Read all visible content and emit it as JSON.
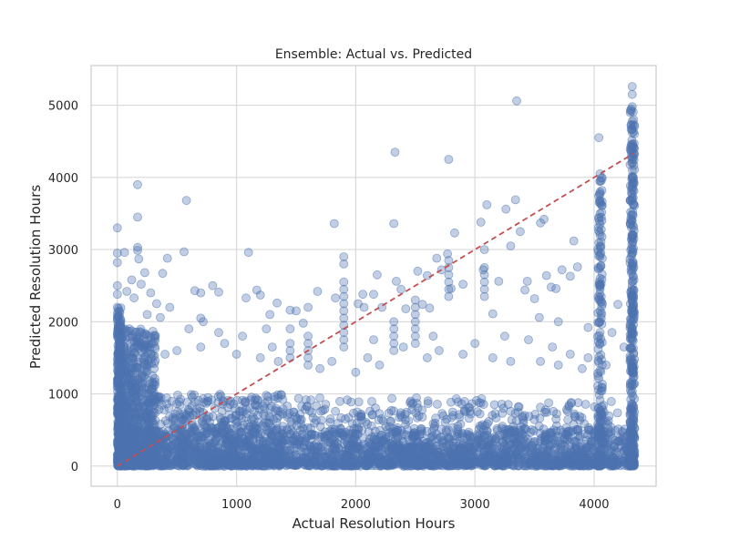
{
  "chart_data": {
    "type": "scatter",
    "title": "Ensemble: Actual vs. Predicted",
    "xlabel": "Actual Resolution Hours",
    "ylabel": "Predicted Resolution Hours",
    "xlim": [
      -220,
      4520
    ],
    "ylim": [
      -280,
      5550
    ],
    "xticks": [
      0,
      1000,
      2000,
      3000,
      4000
    ],
    "xtick_labels": [
      "0",
      "1000",
      "2000",
      "3000",
      "4000"
    ],
    "yticks": [
      0,
      1000,
      2000,
      3000,
      4000,
      5000
    ],
    "ytick_labels": [
      "0",
      "1000",
      "2000",
      "3000",
      "4000",
      "5000"
    ],
    "grid": true,
    "point_color": "#4c72b0",
    "reference_line": {
      "style": "dashed",
      "color": "#c44e52",
      "from": [
        0,
        0
      ],
      "to": [
        4330,
        4330
      ]
    },
    "points": [
      [
        0,
        3300
      ],
      [
        0,
        2950
      ],
      [
        0,
        2820
      ],
      [
        0,
        2500
      ],
      [
        0,
        2380
      ],
      [
        0,
        2200
      ],
      [
        0,
        2100
      ],
      [
        60,
        2960
      ],
      [
        80,
        2420
      ],
      [
        120,
        2580
      ],
      [
        140,
        2330
      ],
      [
        170,
        3900
      ],
      [
        170,
        3450
      ],
      [
        170,
        3030
      ],
      [
        170,
        2990
      ],
      [
        180,
        2870
      ],
      [
        200,
        2520
      ],
      [
        230,
        2680
      ],
      [
        250,
        2100
      ],
      [
        280,
        2400
      ],
      [
        330,
        2250
      ],
      [
        360,
        2060
      ],
      [
        380,
        2670
      ],
      [
        420,
        2880
      ],
      [
        440,
        2200
      ],
      [
        560,
        2970
      ],
      [
        580,
        3680
      ],
      [
        650,
        2430
      ],
      [
        700,
        2400
      ],
      [
        720,
        2000
      ],
      [
        800,
        2500
      ],
      [
        850,
        2410
      ],
      [
        1080,
        2330
      ],
      [
        1100,
        2960
      ],
      [
        1170,
        2440
      ],
      [
        1200,
        2370
      ],
      [
        1280,
        2100
      ],
      [
        1340,
        2260
      ],
      [
        1450,
        2160
      ],
      [
        1500,
        2150
      ],
      [
        1560,
        1980
      ],
      [
        1600,
        2200
      ],
      [
        1680,
        2420
      ],
      [
        1820,
        3360
      ],
      [
        1830,
        2330
      ],
      [
        1900,
        2900
      ],
      [
        1900,
        2800
      ],
      [
        2020,
        2250
      ],
      [
        2060,
        2380
      ],
      [
        2070,
        2200
      ],
      [
        2150,
        2380
      ],
      [
        2180,
        2650
      ],
      [
        2220,
        2200
      ],
      [
        2320,
        3360
      ],
      [
        2330,
        4350
      ],
      [
        2340,
        2560
      ],
      [
        2380,
        2450
      ],
      [
        2420,
        2180
      ],
      [
        2520,
        2700
      ],
      [
        2560,
        2240
      ],
      [
        2600,
        2640
      ],
      [
        2620,
        2190
      ],
      [
        2680,
        2880
      ],
      [
        2720,
        2720
      ],
      [
        2770,
        2940
      ],
      [
        2780,
        4250
      ],
      [
        2800,
        2460
      ],
      [
        2830,
        3230
      ],
      [
        2900,
        2520
      ],
      [
        3050,
        3380
      ],
      [
        3070,
        2720
      ],
      [
        3080,
        3000
      ],
      [
        3100,
        3620
      ],
      [
        3150,
        2110
      ],
      [
        3200,
        2560
      ],
      [
        3260,
        3560
      ],
      [
        3300,
        3050
      ],
      [
        3340,
        3690
      ],
      [
        3350,
        5060
      ],
      [
        3380,
        3250
      ],
      [
        3420,
        2440
      ],
      [
        3440,
        2560
      ],
      [
        3500,
        2320
      ],
      [
        3540,
        2060
      ],
      [
        3550,
        3370
      ],
      [
        3580,
        3420
      ],
      [
        3600,
        2640
      ],
      [
        3640,
        2480
      ],
      [
        3680,
        2460
      ],
      [
        3700,
        2000
      ],
      [
        3730,
        2720
      ],
      [
        3800,
        2630
      ],
      [
        3830,
        3120
      ],
      [
        3860,
        2760
      ],
      [
        3950,
        1920
      ],
      [
        4040,
        4550
      ],
      [
        4200,
        2240
      ],
      [
        4320,
        5260
      ],
      [
        4320,
        5150
      ],
      [
        4320,
        4980
      ],
      [
        4320,
        4780
      ],
      [
        4320,
        4660
      ],
      [
        4320,
        4450
      ],
      [
        4320,
        4250
      ],
      [
        4320,
        4000
      ],
      [
        4320,
        3900
      ],
      [
        4320,
        3700
      ],
      [
        4320,
        3400
      ],
      [
        4320,
        3200
      ],
      [
        4320,
        2950
      ],
      [
        4320,
        2700
      ],
      [
        4320,
        2500
      ],
      [
        4320,
        2300
      ],
      [
        4320,
        2100
      ],
      [
        4320,
        1900
      ],
      [
        4320,
        1750
      ],
      [
        4050,
        4050
      ],
      [
        4050,
        3950
      ],
      [
        4050,
        3800
      ],
      [
        4050,
        3650
      ],
      [
        4050,
        3500
      ],
      [
        4050,
        3350
      ],
      [
        4050,
        3200
      ],
      [
        4050,
        3050
      ],
      [
        4050,
        2900
      ],
      [
        4050,
        2750
      ],
      [
        4050,
        2600
      ],
      [
        4050,
        2450
      ],
      [
        4050,
        2300
      ],
      [
        4050,
        2150
      ],
      [
        4050,
        2000
      ],
      [
        4050,
        1850
      ],
      [
        4050,
        1700
      ],
      [
        1900,
        2550
      ],
      [
        1900,
        2450
      ],
      [
        1900,
        2350
      ],
      [
        1900,
        2250
      ],
      [
        1900,
        2150
      ],
      [
        1900,
        2050
      ],
      [
        1900,
        1950
      ],
      [
        1900,
        1850
      ],
      [
        1900,
        1750
      ],
      [
        1900,
        1650
      ],
      [
        2500,
        2300
      ],
      [
        2500,
        2200
      ],
      [
        2500,
        2100
      ],
      [
        2500,
        2000
      ],
      [
        2500,
        1900
      ],
      [
        2500,
        1800
      ],
      [
        2500,
        1700
      ],
      [
        2780,
        2850
      ],
      [
        2780,
        2750
      ],
      [
        2780,
        2650
      ],
      [
        2780,
        2550
      ],
      [
        2780,
        2450
      ],
      [
        2780,
        2350
      ],
      [
        3080,
        2750
      ],
      [
        3080,
        2650
      ],
      [
        3080,
        2550
      ],
      [
        3080,
        2450
      ],
      [
        3080,
        2350
      ],
      [
        1600,
        1800
      ],
      [
        1600,
        1700
      ],
      [
        1600,
        1600
      ],
      [
        1600,
        1500
      ],
      [
        1600,
        1400
      ],
      [
        1450,
        1900
      ],
      [
        1450,
        1700
      ],
      [
        1450,
        1600
      ],
      [
        1450,
        1500
      ],
      [
        2320,
        2000
      ],
      [
        2320,
        1900
      ],
      [
        2320,
        1800
      ],
      [
        2320,
        1700
      ],
      [
        2320,
        1600
      ],
      [
        3150,
        1500
      ],
      [
        3300,
        1450
      ],
      [
        3550,
        1450
      ],
      [
        3700,
        1400
      ],
      [
        3900,
        1350
      ],
      [
        4100,
        1400
      ],
      [
        2900,
        1550
      ],
      [
        2700,
        1600
      ],
      [
        2600,
        1500
      ],
      [
        2200,
        1400
      ],
      [
        2100,
        1500
      ],
      [
        2000,
        1300
      ],
      [
        1800,
        1450
      ],
      [
        1300,
        1650
      ],
      [
        1200,
        1500
      ],
      [
        1000,
        1550
      ],
      [
        900,
        1700
      ],
      [
        700,
        1650
      ],
      [
        500,
        1600
      ],
      [
        400,
        1550
      ],
      [
        300,
        1700
      ],
      [
        200,
        1850
      ],
      [
        100,
        1900
      ],
      [
        700,
        2050
      ],
      [
        600,
        1900
      ],
      [
        850,
        1850
      ],
      [
        1050,
        1800
      ],
      [
        1250,
        1900
      ],
      [
        1350,
        1450
      ],
      [
        1700,
        1350
      ],
      [
        2150,
        1750
      ],
      [
        2400,
        1650
      ],
      [
        2650,
        1800
      ],
      [
        3000,
        1700
      ],
      [
        3250,
        1800
      ],
      [
        3450,
        1750
      ],
      [
        3650,
        1650
      ],
      [
        3800,
        1550
      ],
      [
        3950,
        1500
      ],
      [
        4150,
        1850
      ],
      [
        4250,
        1650
      ]
    ],
    "dense_regions": [
      {
        "x": [
          0,
          4330
        ],
        "y": [
          0,
          520
        ],
        "count": 1900
      },
      {
        "x": [
          0,
          320
        ],
        "y": [
          0,
          1900
        ],
        "count": 700
      },
      {
        "x": [
          0,
          1400
        ],
        "y": [
          0,
          1000
        ],
        "count": 700
      },
      {
        "x": [
          1400,
          3300
        ],
        "y": [
          0,
          950
        ],
        "count": 500
      },
      {
        "x": [
          3300,
          4200
        ],
        "y": [
          0,
          900
        ],
        "count": 200
      },
      {
        "x": [
          4300,
          4340
        ],
        "y": [
          0,
          5000
        ],
        "count": 350
      },
      {
        "x": [
          4030,
          4070
        ],
        "y": [
          0,
          4000
        ],
        "count": 160
      },
      {
        "x": [
          0,
          30
        ],
        "y": [
          0,
          2200
        ],
        "count": 250
      }
    ]
  }
}
